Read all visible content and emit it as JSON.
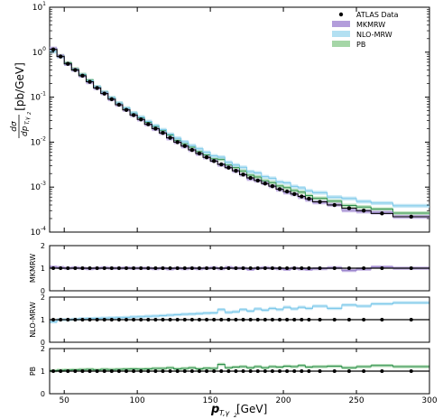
{
  "chart_data": {
    "type": "line",
    "x_axis": {
      "label_main": "p",
      "label_sub": "T,γ",
      "label_subsub": "2",
      "label_unit": " [GeV]",
      "lim": [
        40,
        300
      ],
      "ticks": [
        50,
        100,
        150,
        200,
        250,
        300
      ],
      "tick_labels": [
        "50",
        "100",
        "150",
        "200",
        "250",
        "300"
      ]
    },
    "bin_edges": [
      40,
      45,
      50,
      55,
      60,
      65,
      70,
      75,
      80,
      85,
      90,
      95,
      100,
      105,
      110,
      115,
      120,
      125,
      130,
      135,
      140,
      145,
      150,
      155,
      160,
      165,
      170,
      175,
      180,
      185,
      190,
      195,
      200,
      205,
      210,
      215,
      220,
      230,
      240,
      250,
      260,
      275,
      300
    ],
    "main_panel": {
      "ylabel_frac_num": "dσ",
      "ylabel_frac_den_main": "dp",
      "ylabel_frac_den_sub": "T,γ",
      "ylabel_frac_den_subsub": "2",
      "ylabel_unit": "[pb/GeV]",
      "scale": "log",
      "ylim": [
        0.0001,
        10
      ],
      "yticks": [
        {
          "base": "10",
          "exp": "-4"
        },
        {
          "base": "10",
          "exp": "-3"
        },
        {
          "base": "10",
          "exp": "-2"
        },
        {
          "base": "10",
          "exp": "-1"
        },
        {
          "base": "10",
          "exp": "0"
        },
        {
          "base": "10",
          "exp": "1"
        }
      ],
      "legend": {
        "position": "top-right",
        "entries": [
          {
            "label": "ATLAS Data",
            "marker": "dot",
            "color": "#000000"
          },
          {
            "label": "MKMRW",
            "marker": "band",
            "color": "#b39ddb"
          },
          {
            "label": "NLO-MRW",
            "marker": "band",
            "color": "#b3e0f2"
          },
          {
            "label": "PB",
            "marker": "band",
            "color": "#a5d6a7"
          }
        ]
      },
      "data": {
        "name": "ATLAS Data",
        "x": [
          42.5,
          47.5,
          52.5,
          57.5,
          62.5,
          67.5,
          72.5,
          77.5,
          82.5,
          87.5,
          92.5,
          97.5,
          102.5,
          107.5,
          112.5,
          117.5,
          122.5,
          127.5,
          132.5,
          137.5,
          142.5,
          147.5,
          152.5,
          157.5,
          162.5,
          167.5,
          172.5,
          177.5,
          182.5,
          187.5,
          192.5,
          197.5,
          202.5,
          207.5,
          212.5,
          217.5,
          225,
          235,
          245,
          255,
          267.5,
          287.5
        ],
        "y": [
          1.15,
          0.8,
          0.55,
          0.4,
          0.3,
          0.22,
          0.16,
          0.12,
          0.09,
          0.068,
          0.052,
          0.04,
          0.032,
          0.025,
          0.02,
          0.016,
          0.0125,
          0.01,
          0.0082,
          0.0067,
          0.0056,
          0.0046,
          0.0038,
          0.0032,
          0.0027,
          0.0023,
          0.0019,
          0.0016,
          0.0014,
          0.0012,
          0.00105,
          0.0009,
          0.0008,
          0.0007,
          0.00062,
          0.00055,
          0.00047,
          0.0004,
          0.00034,
          0.0003,
          0.00026,
          0.00022
        ]
      },
      "series": [
        {
          "name": "MKMRW",
          "color": "#9a86cc",
          "fill": "#b39ddb",
          "ratio": [
            1.05,
            1.03,
            1.0,
            1.02,
            1.0,
            0.98,
            1.0,
            1.02,
            1.0,
            1.0,
            1.01,
            1.0,
            1.0,
            1.0,
            0.98,
            1.0,
            0.97,
            1.0,
            0.98,
            1.0,
            0.98,
            1.0,
            1.02,
            0.98,
            1.03,
            1.0,
            1.0,
            0.95,
            1.0,
            1.02,
            1.0,
            0.98,
            0.95,
            1.0,
            0.97,
            0.95,
            0.98,
            1.02,
            0.9,
            0.96,
            1.05,
            1.0
          ]
        },
        {
          "name": "NLO-MRW",
          "color": "#7cc8ea",
          "fill": "#b3e0f2",
          "ratio": [
            0.9,
            1.0,
            1.0,
            1.02,
            1.04,
            1.05,
            1.06,
            1.07,
            1.08,
            1.09,
            1.1,
            1.12,
            1.13,
            1.15,
            1.16,
            1.18,
            1.2,
            1.22,
            1.24,
            1.25,
            1.27,
            1.29,
            1.3,
            1.45,
            1.32,
            1.35,
            1.45,
            1.38,
            1.48,
            1.42,
            1.5,
            1.45,
            1.55,
            1.48,
            1.55,
            1.5,
            1.6,
            1.5,
            1.65,
            1.6,
            1.7,
            1.75
          ]
        },
        {
          "name": "PB",
          "color": "#2f8f4f",
          "fill": "#a5d6a7",
          "ratio": [
            1.02,
            1.04,
            1.05,
            1.06,
            1.07,
            1.08,
            1.06,
            1.08,
            1.07,
            1.08,
            1.09,
            1.1,
            1.09,
            1.1,
            1.12,
            1.12,
            1.15,
            1.1,
            1.12,
            1.15,
            1.1,
            1.13,
            1.12,
            1.3,
            1.15,
            1.18,
            1.2,
            1.15,
            1.2,
            1.15,
            1.2,
            1.18,
            1.22,
            1.2,
            1.25,
            1.18,
            1.2,
            1.22,
            1.15,
            1.2,
            1.25,
            1.2
          ]
        }
      ]
    },
    "ratio_panels": [
      {
        "series": "MKMRW",
        "ylabel": "MKMRW",
        "ylim": [
          0,
          2
        ],
        "yticks": [
          "0",
          "1",
          "2"
        ]
      },
      {
        "series": "NLO-MRW",
        "ylabel": "NLO-MRW",
        "ylim": [
          0,
          2
        ],
        "yticks": [
          "0",
          "1",
          "2"
        ]
      },
      {
        "series": "PB",
        "ylabel": "PB",
        "ylim": [
          0,
          2
        ],
        "yticks": [
          "0",
          "1",
          "2"
        ]
      }
    ]
  }
}
